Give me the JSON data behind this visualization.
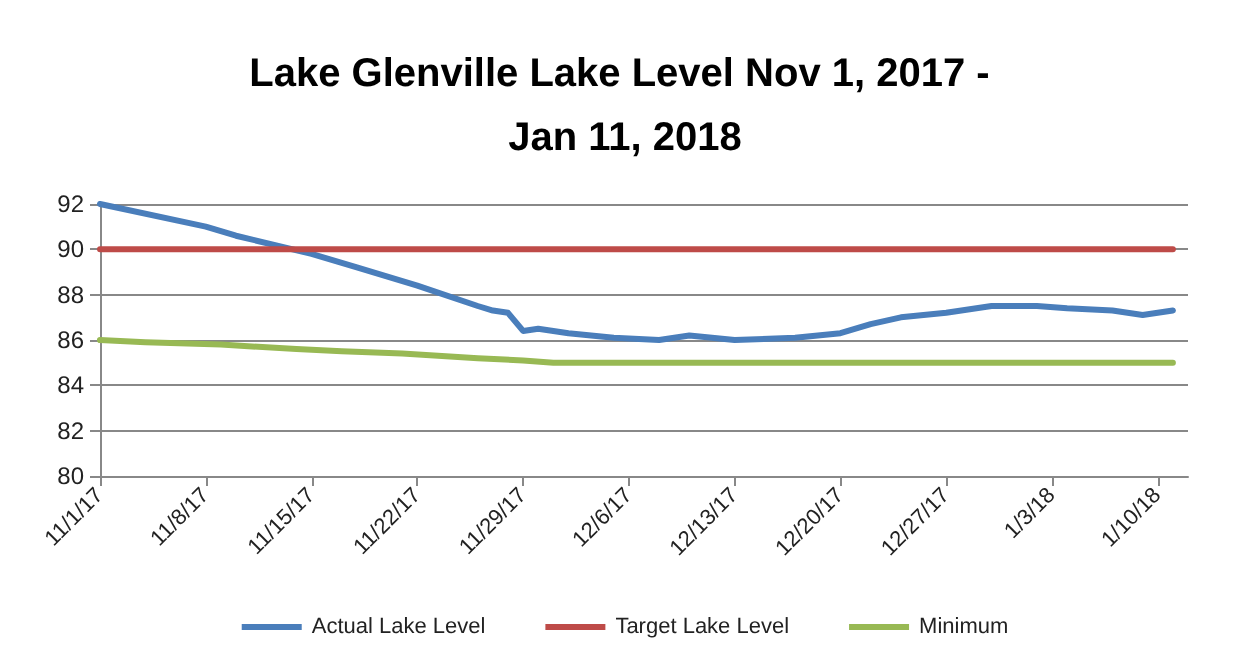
{
  "chart_data": {
    "type": "line",
    "title": "Lake Glenville Lake Level Nov 1, 2017 - Jan 11, 2018",
    "xlim": [
      "2017-11-01",
      "2018-01-12"
    ],
    "xticks": [
      {
        "value": "2017-11-01",
        "label": "11/1/17"
      },
      {
        "value": "2017-11-08",
        "label": "11/8/17"
      },
      {
        "value": "2017-11-15",
        "label": "11/15/17"
      },
      {
        "value": "2017-11-22",
        "label": "11/22/17"
      },
      {
        "value": "2017-11-29",
        "label": "11/29/17"
      },
      {
        "value": "2017-12-06",
        "label": "12/6/17"
      },
      {
        "value": "2017-12-13",
        "label": "12/13/17"
      },
      {
        "value": "2017-12-20",
        "label": "12/20/17"
      },
      {
        "value": "2017-12-27",
        "label": "12/27/17"
      },
      {
        "value": "2018-01-03",
        "label": "1/3/18"
      },
      {
        "value": "2018-01-10",
        "label": "1/10/18"
      }
    ],
    "ylim": [
      80,
      92
    ],
    "yticks": [
      80,
      82,
      84,
      86,
      88,
      90,
      92
    ],
    "grid": "y",
    "legend": "bottom",
    "marker": "none",
    "line_style": "solid",
    "series": [
      {
        "name": "Actual Lake Level",
        "color": "#4a7ebb",
        "x": [
          "2017-11-01",
          "2017-11-08",
          "2017-11-10",
          "2017-11-15",
          "2017-11-18",
          "2017-11-22",
          "2017-11-26",
          "2017-11-27",
          "2017-11-28",
          "2017-11-29",
          "2017-11-30",
          "2017-12-02",
          "2017-12-05",
          "2017-12-08",
          "2017-12-10",
          "2017-12-13",
          "2017-12-17",
          "2017-12-20",
          "2017-12-22",
          "2017-12-24",
          "2017-12-27",
          "2017-12-30",
          "2018-01-02",
          "2018-01-04",
          "2018-01-07",
          "2018-01-09",
          "2018-01-11"
        ],
        "values": [
          92.0,
          91.0,
          90.6,
          89.8,
          89.2,
          88.4,
          87.5,
          87.3,
          87.2,
          86.4,
          86.5,
          86.3,
          86.1,
          86.0,
          86.2,
          86.0,
          86.1,
          86.3,
          86.7,
          87.0,
          87.2,
          87.5,
          87.5,
          87.4,
          87.3,
          87.1,
          87.3
        ]
      },
      {
        "name": "Target Lake Level",
        "color": "#be4b48",
        "x": [
          "2017-11-01",
          "2018-01-11"
        ],
        "values": [
          90,
          90
        ]
      },
      {
        "name": "Minimum",
        "color": "#98b954",
        "x": [
          "2017-11-01",
          "2017-11-04",
          "2017-11-09",
          "2017-11-14",
          "2017-11-17",
          "2017-11-21",
          "2017-11-26",
          "2017-11-29",
          "2017-12-01",
          "2018-01-11"
        ],
        "values": [
          86.0,
          85.9,
          85.8,
          85.6,
          85.5,
          85.4,
          85.2,
          85.1,
          85.0,
          85.0
        ]
      }
    ]
  }
}
